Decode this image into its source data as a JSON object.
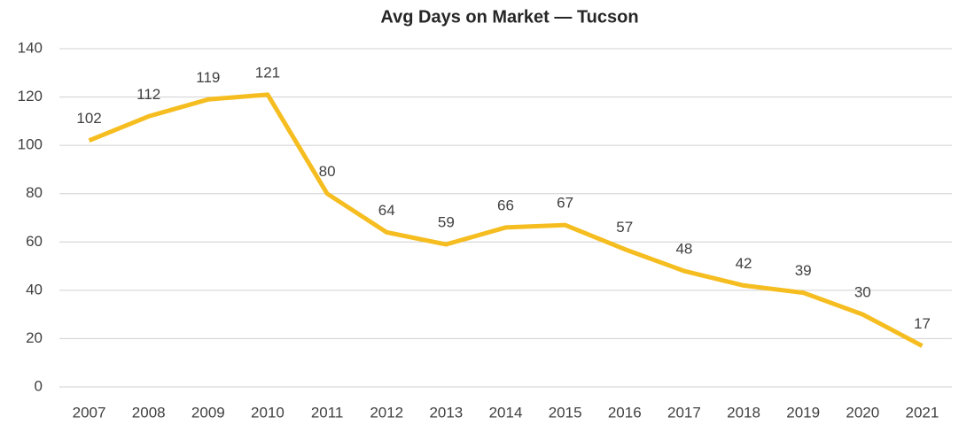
{
  "chart_data": {
    "type": "line",
    "title": "Avg Days on Market — Tucson",
    "categories": [
      "2007",
      "2008",
      "2009",
      "2010",
      "2011",
      "2012",
      "2013",
      "2014",
      "2015",
      "2016",
      "2017",
      "2018",
      "2019",
      "2020",
      "2021"
    ],
    "values": [
      102,
      112,
      119,
      121,
      80,
      64,
      59,
      66,
      67,
      57,
      48,
      42,
      39,
      30,
      17
    ],
    "color": "#f5bd1f",
    "ylim": [
      0,
      140
    ],
    "yticks": [
      0,
      20,
      40,
      60,
      80,
      100,
      120,
      140
    ],
    "grid": true
  }
}
